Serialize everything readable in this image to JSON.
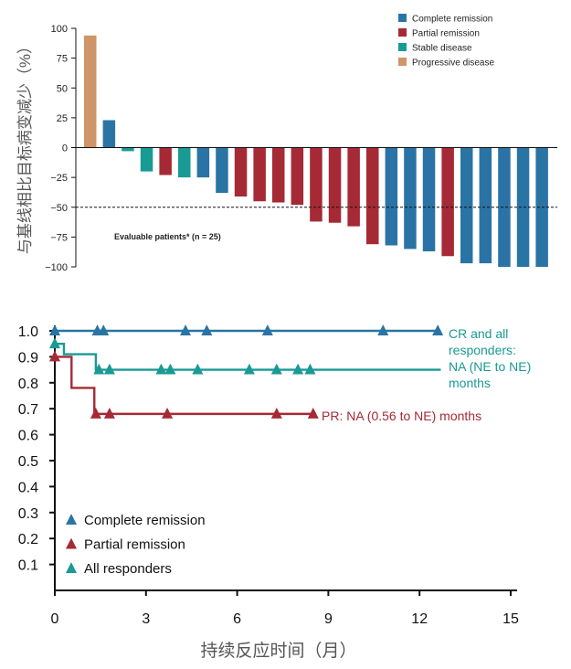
{
  "colors": {
    "complete": "#2a74a5",
    "partial": "#a52a35",
    "stable": "#1a9a94",
    "progressive": "#cf9468",
    "axis": "#111111"
  },
  "chart_data": [
    {
      "type": "bar",
      "title": "",
      "ylabel": "与基线相比目标病变减少（%）",
      "xlabel": "",
      "ylim": [
        -100,
        100
      ],
      "yticks": [
        100,
        75,
        50,
        25,
        0,
        -25,
        -50,
        -75,
        -100
      ],
      "ytick_labels": [
        "100",
        "75",
        "50",
        "25",
        "0",
        "−25",
        "−50",
        "−75",
        "−100"
      ],
      "reference_line": -50,
      "annotation": "Evaluable patients* (n = 25)",
      "legend": [
        {
          "key": "complete",
          "label": "Complete remission"
        },
        {
          "key": "partial",
          "label": "Partial remission"
        },
        {
          "key": "stable",
          "label": "Stable disease"
        },
        {
          "key": "progressive",
          "label": "Progressive disease"
        }
      ],
      "bars": [
        {
          "value": 94,
          "response": "progressive"
        },
        {
          "value": 23,
          "response": "complete"
        },
        {
          "value": -3,
          "response": "stable"
        },
        {
          "value": -20,
          "response": "stable"
        },
        {
          "value": -23,
          "response": "partial"
        },
        {
          "value": -25,
          "response": "stable"
        },
        {
          "value": -25,
          "response": "complete"
        },
        {
          "value": -38,
          "response": "complete"
        },
        {
          "value": -41,
          "response": "partial"
        },
        {
          "value": -45,
          "response": "partial"
        },
        {
          "value": -46,
          "response": "partial"
        },
        {
          "value": -48,
          "response": "partial"
        },
        {
          "value": -62,
          "response": "partial"
        },
        {
          "value": -63,
          "response": "partial"
        },
        {
          "value": -66,
          "response": "partial"
        },
        {
          "value": -81,
          "response": "partial"
        },
        {
          "value": -82,
          "response": "complete"
        },
        {
          "value": -85,
          "response": "complete"
        },
        {
          "value": -87,
          "response": "complete"
        },
        {
          "value": -91,
          "response": "partial"
        },
        {
          "value": -97,
          "response": "complete"
        },
        {
          "value": -97,
          "response": "complete"
        },
        {
          "value": -100,
          "response": "complete"
        },
        {
          "value": -100,
          "response": "complete"
        },
        {
          "value": -100,
          "response": "complete"
        }
      ]
    },
    {
      "type": "line",
      "title": "",
      "xlabel": "持续反应时间（月）",
      "ylabel": "",
      "xlim": [
        0,
        15
      ],
      "ylim": [
        0,
        1.0
      ],
      "xticks": [
        0,
        3,
        6,
        9,
        12,
        15
      ],
      "yticks": [
        0.1,
        0.2,
        0.3,
        0.4,
        0.5,
        0.6,
        0.7,
        0.8,
        0.9,
        1.0
      ],
      "ytick_labels": [
        "0.1",
        "0.2",
        "0.3",
        "0.4",
        "0.5",
        "0.6",
        "0.7",
        "0.8",
        "0.9",
        "1.0"
      ],
      "legend": [
        {
          "key": "complete",
          "label": "Complete remission"
        },
        {
          "key": "partial",
          "label": "Partial remission"
        },
        {
          "key": "stable",
          "label": "All responders"
        }
      ],
      "series": [
        {
          "name": "Complete remission",
          "color_key": "complete",
          "steps": [
            [
              0,
              1.0
            ],
            [
              12.7,
              1.0
            ]
          ],
          "censors": [
            [
              0,
              1.0
            ],
            [
              1.4,
              1.0
            ],
            [
              1.6,
              1.0
            ],
            [
              4.3,
              1.0
            ],
            [
              5.0,
              1.0
            ],
            [
              7.0,
              1.0
            ],
            [
              10.8,
              1.0
            ],
            [
              12.6,
              1.0
            ]
          ]
        },
        {
          "name": "Partial remission",
          "color_key": "partial",
          "steps": [
            [
              0,
              0.9
            ],
            [
              0.55,
              0.9
            ],
            [
              0.55,
              0.78
            ],
            [
              1.3,
              0.78
            ],
            [
              1.3,
              0.68
            ],
            [
              8.6,
              0.68
            ]
          ],
          "censors": [
            [
              0,
              0.9
            ],
            [
              1.35,
              0.68
            ],
            [
              1.8,
              0.68
            ],
            [
              3.7,
              0.68
            ],
            [
              7.3,
              0.68
            ],
            [
              8.5,
              0.68
            ]
          ]
        },
        {
          "name": "All responders",
          "color_key": "stable",
          "steps": [
            [
              0,
              0.95
            ],
            [
              0.3,
              0.95
            ],
            [
              0.3,
              0.91
            ],
            [
              1.35,
              0.91
            ],
            [
              1.35,
              0.85
            ],
            [
              12.7,
              0.85
            ]
          ],
          "censors": [
            [
              0,
              0.95
            ],
            [
              1.45,
              0.85
            ],
            [
              1.8,
              0.85
            ],
            [
              3.5,
              0.85
            ],
            [
              3.8,
              0.85
            ],
            [
              4.7,
              0.85
            ],
            [
              6.4,
              0.85
            ],
            [
              7.3,
              0.85
            ],
            [
              8.0,
              0.85
            ],
            [
              8.4,
              0.85
            ]
          ]
        }
      ],
      "annotations": {
        "cr": [
          "CR and all",
          "responders:",
          "NA (NE to NE)",
          "months"
        ],
        "pr": "PR: NA (0.56 to NE) months"
      }
    }
  ]
}
